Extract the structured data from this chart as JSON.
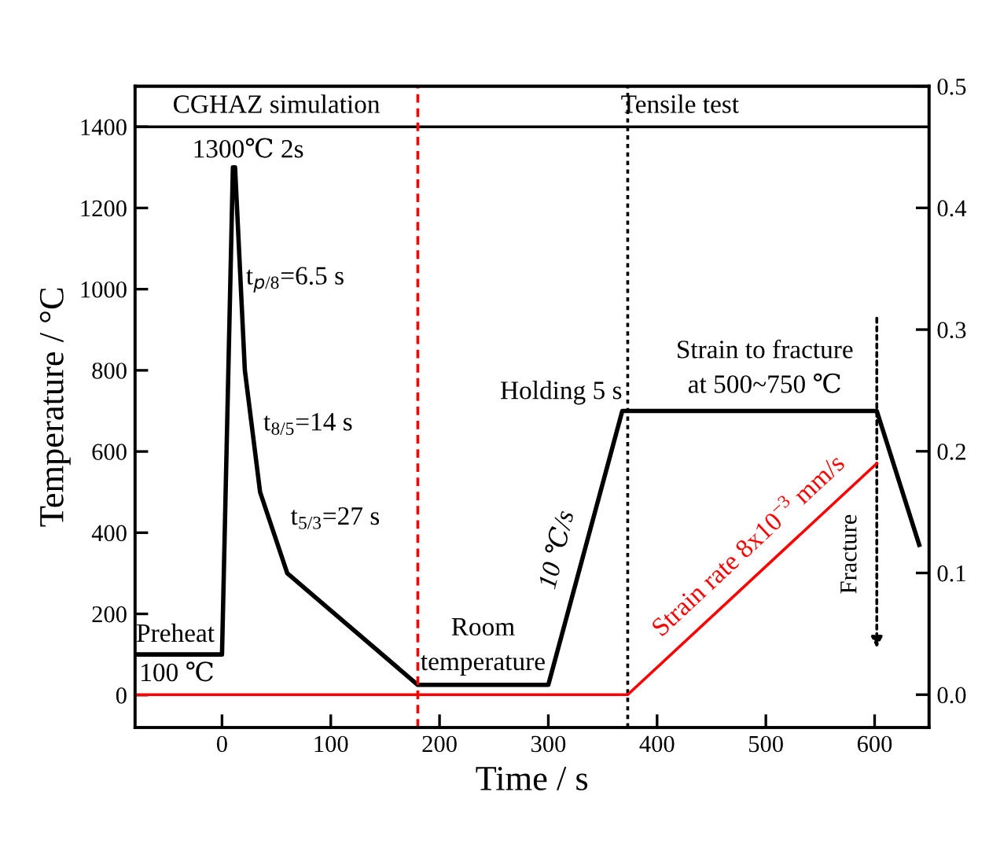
{
  "chart_data": {
    "type": "line",
    "xlabel": "Time / s",
    "ylabel": "Temperature / °C",
    "xlim": [
      -80,
      650
    ],
    "ylim": [
      -80,
      1500
    ],
    "y2lim": [
      -0.027,
      0.5
    ],
    "xticks": [
      0,
      100,
      200,
      300,
      400,
      500,
      600
    ],
    "yticks": [
      0,
      200,
      400,
      600,
      800,
      1000,
      1200,
      1400
    ],
    "y2ticks": [
      {
        "value": 0,
        "label": "0.0"
      },
      {
        "value": 0.1,
        "label": "0.1"
      },
      {
        "value": 0.2,
        "label": "0.2"
      },
      {
        "value": 0.3,
        "label": "0.3"
      },
      {
        "value": 0.4,
        "label": "0.4"
      },
      {
        "value": 0.5,
        "label": "0.5"
      }
    ],
    "series": [
      {
        "color": "#000000",
        "x": [
          -80,
          0,
          10,
          12,
          21,
          35,
          60,
          180,
          300,
          368,
          602,
          641
        ],
        "values": [
          100,
          100,
          1300,
          1300,
          800,
          500,
          300,
          25,
          25,
          700,
          700,
          370
        ]
      },
      {
        "color": "#ff0000",
        "axis": "y2",
        "x": [
          -80,
          373,
          602
        ],
        "values": [
          0,
          0,
          0.19
        ]
      }
    ],
    "ref_lines": [
      {
        "axis": "y",
        "value": 1400,
        "color": "#000000",
        "line_style": "solid"
      },
      {
        "axis": "x",
        "value": 180,
        "color": "#ff0000",
        "line_style": "dashed"
      },
      {
        "axis": "x",
        "value": 373,
        "color": "#000000",
        "line_style": "dotted"
      }
    ],
    "annotations": [
      "CGHAZ simulation",
      "Tensile test",
      "1300℃ 2s",
      "t$_{p/8}$=6.5 s",
      "t$_{8/5}$=14 s",
      "t$_{5/3}$=27 s",
      "Preheat",
      "100 ℃",
      "Room\ntemperature",
      "10 ℃/s",
      "Holding 5 s",
      "Strain to fracture\nat 500~750 ℃",
      "Strain rate 8x10$^{−3}$ mm/s",
      "Fracture"
    ],
    "grid": false,
    "marker": "none",
    "line_style": "solid"
  }
}
